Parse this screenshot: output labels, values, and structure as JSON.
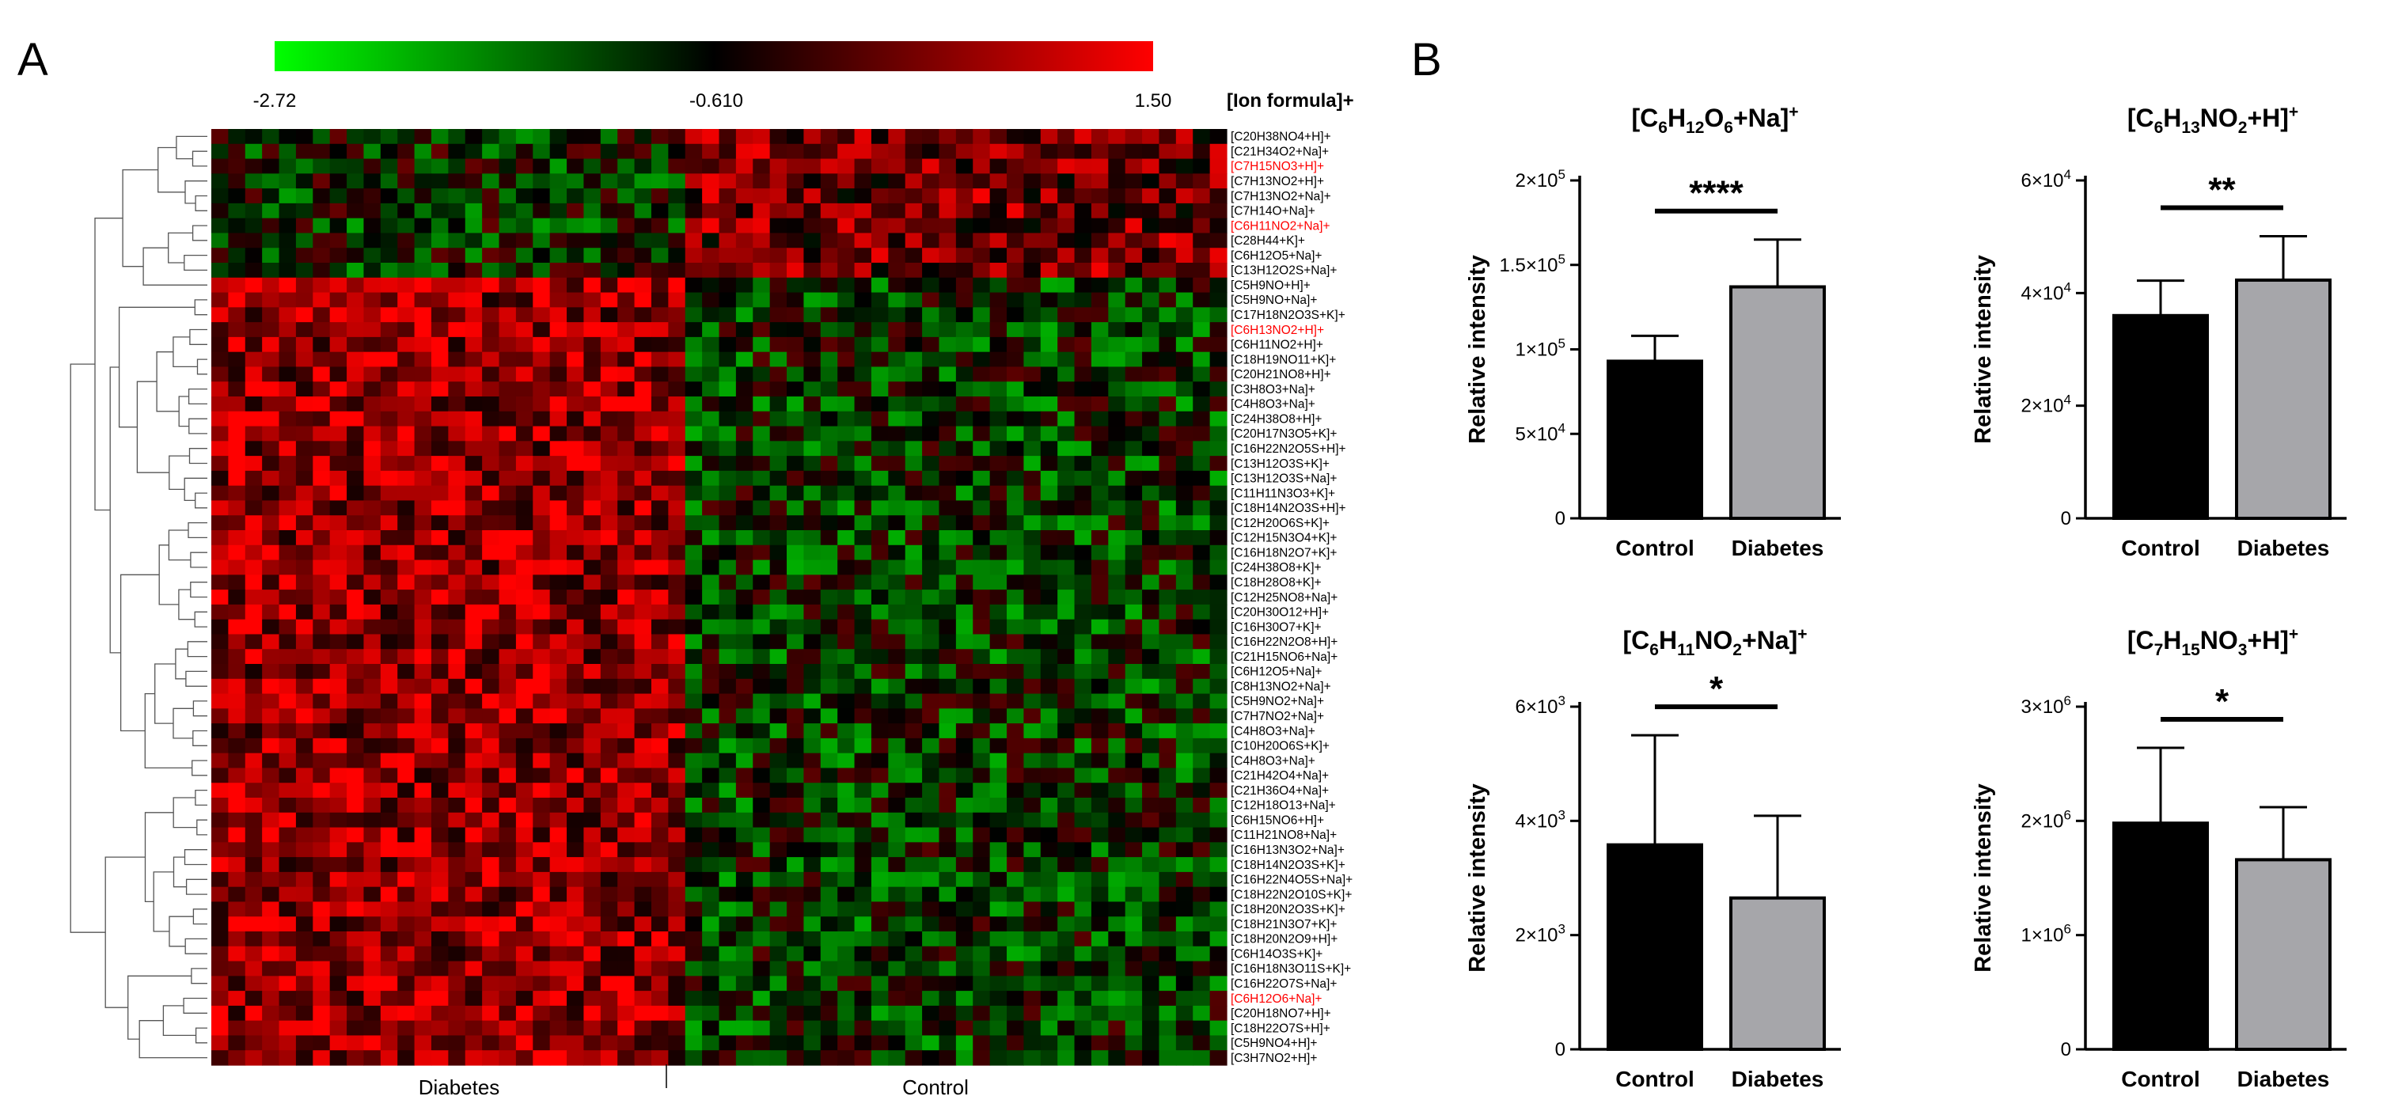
{
  "panels": {
    "heatmap_letter": "A",
    "bar_letter": "B"
  },
  "colors": {
    "low": "#00ff00",
    "mid": "#000000",
    "high": "#ff0000",
    "control_bar": "#000000",
    "diabetes_bar": "#a6a6aa",
    "highlight_text": "#ff0000"
  },
  "chart_data": [
    {
      "type": "heatmap",
      "title": "",
      "colorbar": {
        "min_label": "-2.72",
        "mid_label": "-0.610",
        "max_label": "1.50",
        "min": -2.72,
        "mid": -0.61,
        "max": 1.5,
        "title": "[Ion formula]+"
      },
      "column_groups": [
        {
          "label": "Diabetes",
          "n_columns": 28
        },
        {
          "label": "Control",
          "n_columns": 32
        }
      ],
      "row_labels": [
        "[C20H38NO4+H]+",
        "[C21H34O2+Na]+",
        "[C7H15NO3+H]+",
        "[C7H13NO2+H]+",
        "[C7H13NO2+Na]+",
        "[C7H14O+Na]+",
        "[C6H11NO2+Na]+",
        "[C28H44+K]+",
        "[C6H12O5+Na]+",
        "[C13H12O2S+Na]+",
        "[C5H9NO+H]+",
        "[C5H9NO+Na]+",
        "[C17H18N2O3S+K]+",
        "[C6H13NO2+H]+",
        "[C6H11NO2+H]+",
        "[C18H19NO11+K]+",
        "[C20H21NO8+H]+",
        "[C3H8O3+Na]+",
        "[C4H8O3+Na]+",
        "[C24H38O8+H]+",
        "[C20H17N3O5+K]+",
        "[C16H22N2O5S+H]+",
        "[C13H12O3S+K]+",
        "[C13H12O3S+Na]+",
        "[C11H11N3O3+K]+",
        "[C18H14N2O3S+H]+",
        "[C12H20O6S+K]+",
        "[C12H15N3O4+K]+",
        "[C16H18N2O7+K]+",
        "[C24H38O8+K]+",
        "[C18H28O8+K]+",
        "[C12H25NO8+Na]+",
        "[C20H30O12+H]+",
        "[C16H30O7+K]+",
        "[C16H22N2O8+H]+",
        "[C21H15NO6+Na]+",
        "[C6H12O5+Na]+",
        "[C8H13NO2+Na]+",
        "[C5H9NO2+Na]+",
        "[C7H7NO2+Na]+",
        "[C4H8O3+Na]+",
        "[C10H20O6S+K]+",
        "[C4H8O3+Na]+",
        "[C21H42O4+Na]+",
        "[C21H36O4+Na]+",
        "[C12H18O13+Na]+",
        "[C6H15NO6+H]+",
        "[C11H21NO8+Na]+",
        "[C16H13N3O2+Na]+",
        "[C18H14N2O3S+K]+",
        "[C16H22N4O5S+Na]+",
        "[C18H22N2O10S+K]+",
        "[C18H20N2O3S+K]+",
        "[C18H21N3O7+K]+",
        "[C18H20N2O9+H]+",
        "[C6H14O3S+K]+",
        "[C16H18N3O11S+K]+",
        "[C16H22O7S+Na]+",
        "[C6H12O6+Na]+",
        "[C20H18NO7+H]+",
        "[C18H22O7S+H]+",
        "[C5H9NO4+H]+",
        "[C3H7NO2+H]+"
      ],
      "highlighted_rows": [
        "[C7H15NO3+H]+",
        "[C6H11NO2+Na]+",
        "[C6H13NO2+H]+",
        "[C6H12O6+Na]+"
      ]
    },
    {
      "type": "bar",
      "title_main": "[C6H12O6+Na]",
      "title_parts": [
        "[C",
        "6",
        "H",
        "12",
        "O",
        "6",
        "+Na]",
        "+"
      ],
      "ylabel": "Relative intensity",
      "categories": [
        "Control",
        "Diabetes"
      ],
      "values": [
        93000,
        137000
      ],
      "errors": [
        15000,
        28000
      ],
      "ylim": [
        0,
        200000
      ],
      "yticks": [
        {
          "v": 0,
          "m": "0",
          "e": ""
        },
        {
          "v": 50000,
          "m": "5×10",
          "e": "4"
        },
        {
          "v": 100000,
          "m": "1×10",
          "e": "5"
        },
        {
          "v": 150000,
          "m": "1.5×10",
          "e": "5"
        },
        {
          "v": 200000,
          "m": "2×10",
          "e": "5"
        }
      ],
      "significance": "****"
    },
    {
      "type": "bar",
      "title_parts": [
        "[C",
        "6",
        "H",
        "13",
        "NO",
        "2",
        "+H]",
        "+"
      ],
      "ylabel": "Relative intensity",
      "categories": [
        "Control",
        "Diabetes"
      ],
      "values": [
        36000,
        42300
      ],
      "errors": [
        6200,
        7800
      ],
      "ylim": [
        0,
        60000
      ],
      "yticks": [
        {
          "v": 0,
          "m": "0",
          "e": ""
        },
        {
          "v": 20000,
          "m": "2×10",
          "e": "4"
        },
        {
          "v": 40000,
          "m": "4×10",
          "e": "4"
        },
        {
          "v": 60000,
          "m": "6×10",
          "e": "4"
        }
      ],
      "significance": "**"
    },
    {
      "type": "bar",
      "title_parts": [
        "[C",
        "6",
        "H",
        "11",
        "NO",
        "2",
        "+Na]",
        "+"
      ],
      "ylabel": "Relative intensity",
      "categories": [
        "Control",
        "Diabetes"
      ],
      "values": [
        3580,
        2650
      ],
      "errors": [
        1920,
        1440
      ],
      "ylim": [
        0,
        6000
      ],
      "yticks": [
        {
          "v": 0,
          "m": "0",
          "e": ""
        },
        {
          "v": 2000,
          "m": "2×10",
          "e": "3"
        },
        {
          "v": 4000,
          "m": "4×10",
          "e": "3"
        },
        {
          "v": 6000,
          "m": "6×10",
          "e": "3"
        }
      ],
      "significance": "*"
    },
    {
      "type": "bar",
      "title_parts": [
        "[C",
        "7",
        "H",
        "15",
        "NO",
        "3",
        "+H]",
        "+"
      ],
      "ylabel": "Relative intensity",
      "categories": [
        "Control",
        "Diabetes"
      ],
      "values": [
        1980000,
        1660000
      ],
      "errors": [
        660000,
        460000
      ],
      "ylim": [
        0,
        3000000
      ],
      "yticks": [
        {
          "v": 0,
          "m": "0",
          "e": ""
        },
        {
          "v": 1000000,
          "m": "1×10",
          "e": "6"
        },
        {
          "v": 2000000,
          "m": "2×10",
          "e": "6"
        },
        {
          "v": 3000000,
          "m": "3×10",
          "e": "6"
        }
      ],
      "significance": "*"
    }
  ]
}
